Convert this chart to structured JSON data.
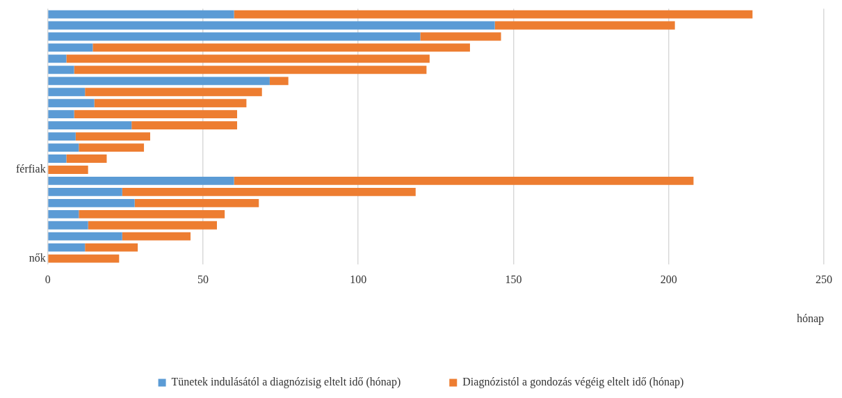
{
  "chart_data": {
    "type": "bar",
    "orientation": "horizontal",
    "stacked": true,
    "categories": [
      null,
      null,
      null,
      null,
      null,
      null,
      null,
      null,
      null,
      null,
      null,
      null,
      null,
      null,
      "férfiak",
      null,
      null,
      null,
      null,
      null,
      null,
      null,
      "nők"
    ],
    "series": [
      {
        "name": "Tünetek indulásától a diagnózisig eltelt idő (hónap)",
        "color": "#5b9bd5",
        "values": [
          60,
          144,
          120,
          14.5,
          6,
          8.5,
          71.5,
          12,
          15,
          8.5,
          27,
          9,
          10,
          6,
          0,
          60,
          24,
          28,
          10,
          13,
          24,
          12,
          0
        ]
      },
      {
        "name": "Diagnózistól a gondozás végéig eltelt idő (hónap)",
        "color": "#ed7d31",
        "values": [
          167,
          58,
          26,
          121.5,
          117,
          113.5,
          6,
          57,
          49,
          52.5,
          34,
          24,
          21,
          13,
          13,
          148,
          94.5,
          40,
          47,
          41.5,
          22,
          17,
          23
        ]
      }
    ],
    "xlabel": "hónap",
    "xlim": [
      0,
      250
    ],
    "xticks": [
      0,
      50,
      100,
      150,
      200,
      250
    ],
    "grid": "x",
    "legend": "bottom"
  }
}
